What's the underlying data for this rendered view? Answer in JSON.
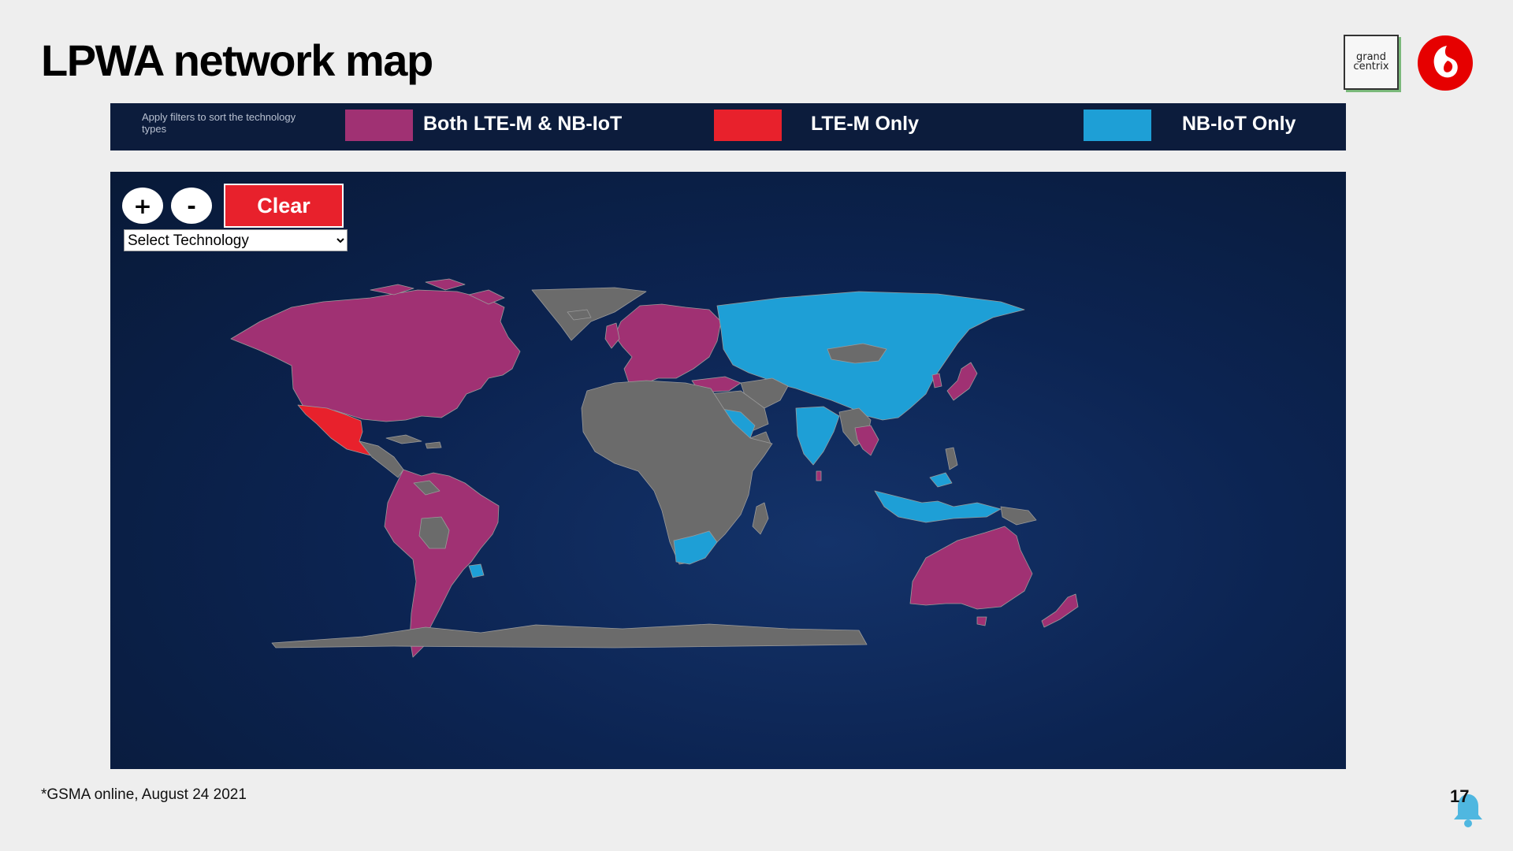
{
  "slide": {
    "title": "LPWA network map",
    "footnote": "*GSMA online, August 24 2021",
    "page_number": "17"
  },
  "logos": {
    "partner_text": "grand centrix"
  },
  "legend": {
    "hint": "Apply filters to sort the technology types",
    "items": [
      {
        "label": "Both LTE-M & NB-IoT",
        "color": "#a03173"
      },
      {
        "label": "LTE-M Only",
        "color": "#e8212c"
      },
      {
        "label": "NB-IoT Only",
        "color": "#1e9fd6"
      }
    ]
  },
  "map": {
    "zoom_in_label": "+",
    "zoom_out_label": "-",
    "clear_label": "Clear",
    "select_value": "Select Technology",
    "no_data_color": "#6b6b6b",
    "regions": {
      "both_lte_m_nb_iot": [
        "North America",
        "South America",
        "Europe",
        "Turkey",
        "Japan",
        "Thailand",
        "Australia",
        "New Zealand"
      ],
      "lte_m_only": [
        "Mexico"
      ],
      "nb_iot_only": [
        "Russia",
        "China",
        "India",
        "Saudi Arabia",
        "South Africa",
        "Uruguay",
        "Indonesia"
      ]
    }
  }
}
